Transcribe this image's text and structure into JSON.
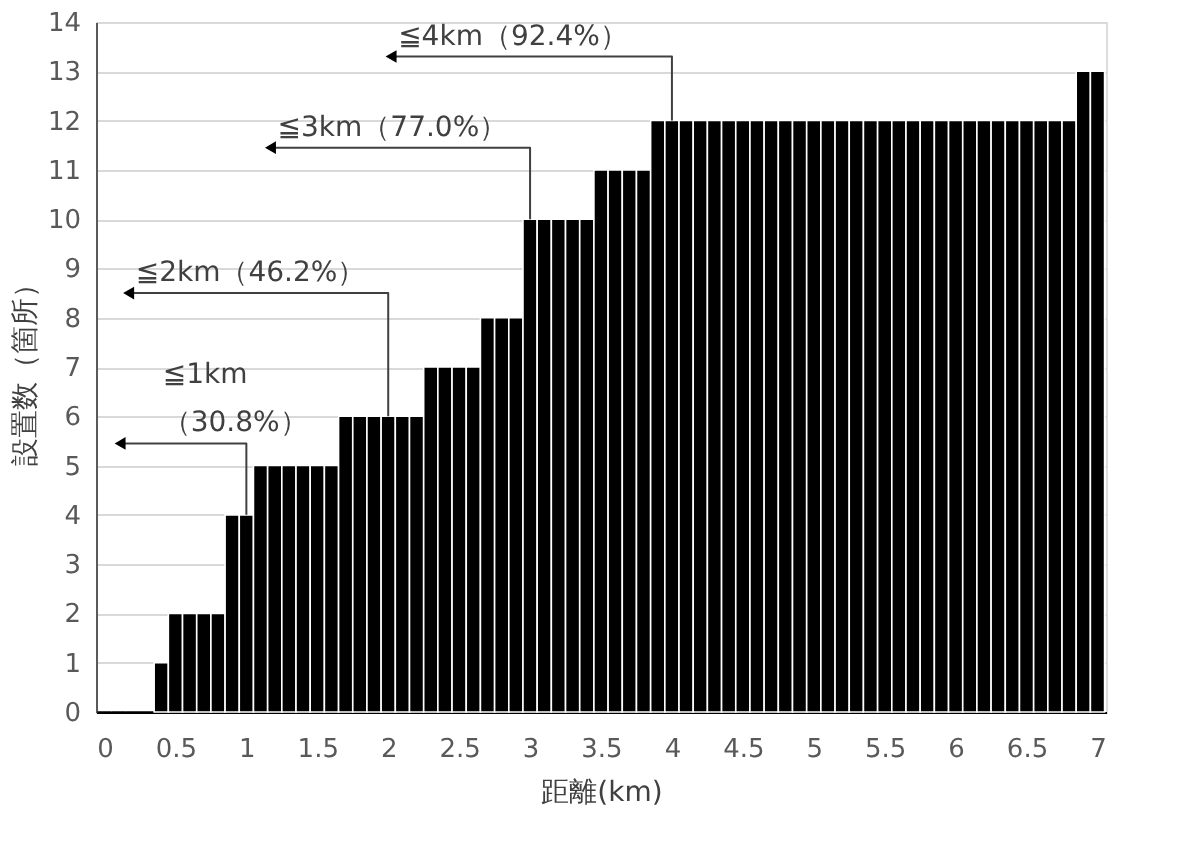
{
  "chart_data": {
    "type": "bar",
    "xlabel": "距離(km)",
    "ylabel": "設置数（箇所）",
    "x": [
      0.0,
      0.1,
      0.2,
      0.3,
      0.4,
      0.5,
      0.6,
      0.7,
      0.8,
      0.9,
      1.0,
      1.1,
      1.2,
      1.3,
      1.4,
      1.5,
      1.6,
      1.7,
      1.8,
      1.9,
      2.0,
      2.1,
      2.2,
      2.3,
      2.4,
      2.5,
      2.6,
      2.7,
      2.8,
      2.9,
      3.0,
      3.1,
      3.2,
      3.3,
      3.4,
      3.5,
      3.6,
      3.7,
      3.8,
      3.9,
      4.0,
      4.1,
      4.2,
      4.3,
      4.4,
      4.5,
      4.6,
      4.7,
      4.8,
      4.9,
      5.0,
      5.1,
      5.2,
      5.3,
      5.4,
      5.5,
      5.6,
      5.7,
      5.8,
      5.9,
      6.0,
      6.1,
      6.2,
      6.3,
      6.4,
      6.5,
      6.6,
      6.7,
      6.8,
      6.9,
      7.0
    ],
    "values": [
      0,
      0,
      0,
      0,
      1,
      2,
      2,
      2,
      2,
      4,
      4,
      5,
      5,
      5,
      5,
      5,
      5,
      6,
      6,
      6,
      6,
      6,
      6,
      7,
      7,
      7,
      7,
      8,
      8,
      8,
      10,
      10,
      10,
      10,
      10,
      11,
      11,
      11,
      11,
      12,
      12,
      12,
      12,
      12,
      12,
      12,
      12,
      12,
      12,
      12,
      12,
      12,
      12,
      12,
      12,
      12,
      12,
      12,
      12,
      12,
      12,
      12,
      12,
      12,
      12,
      12,
      12,
      12,
      12,
      13,
      13
    ],
    "color": "#000000",
    "xlim": [
      -0.06,
      7.06
    ],
    "xticks": [
      0,
      0.5,
      1,
      1.5,
      2,
      2.5,
      3,
      3.5,
      4,
      4.5,
      5,
      5.5,
      6,
      6.5,
      7
    ],
    "ylim": [
      0,
      14
    ],
    "yticks": [
      0,
      1,
      2,
      3,
      4,
      5,
      6,
      7,
      8,
      9,
      10,
      11,
      12,
      13,
      14
    ],
    "grid": "y",
    "annotations": [
      {
        "text": "≦1km\n（30.8%）",
        "x": 1.0,
        "y": 4
      },
      {
        "text": "≦2km（46.2%）",
        "x": 2.0,
        "y": 6
      },
      {
        "text": "≦3km（77.0%）",
        "x": 3.0,
        "y": 10
      },
      {
        "text": "≦4km（92.4%）",
        "x": 4.0,
        "y": 12
      }
    ]
  }
}
